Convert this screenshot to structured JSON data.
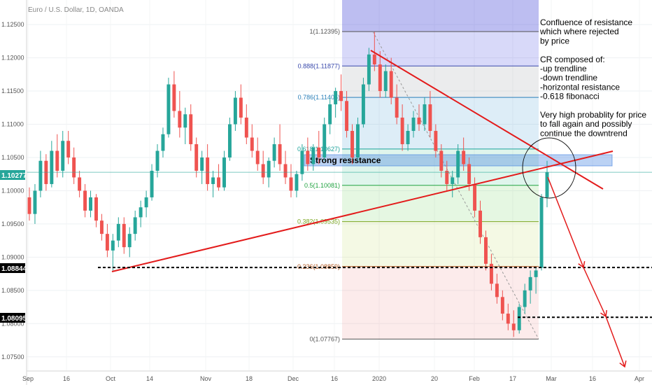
{
  "title": "Euro / U.S. Dollar, 1D, OANDA",
  "colors": {
    "up": "#26a69a",
    "down": "#ef5350",
    "trendline": "#e31b1b",
    "resistance_zone": "#3d7fe0",
    "current_price_bg": "#26a69a",
    "level_bg": "#000000"
  },
  "price_markers": {
    "current": "1.10277",
    "level_high": "1.08844",
    "level_low": "1.08095"
  },
  "zone_label": "Strong resistance",
  "note_lines": [
    "Confluence of resistance",
    "which where rejected",
    "by price",
    "",
    "CR composed of:",
    "-up trendline",
    "-down trendline",
    "-horizontal resistance",
    "-0.618 fibonacci",
    "",
    "Very high probablity for price",
    "to fall again and possibly",
    "continue the downtrend"
  ],
  "fib_labels": [
    {
      "text": "1(1.12395)",
      "price": 1.12395,
      "color": "#555555"
    },
    {
      "text": "0.888(1.11877)",
      "price": 1.11877,
      "color": "#3949ab"
    },
    {
      "text": "0.786(1.11405)",
      "price": 1.11405,
      "color": "#2a7fb8"
    },
    {
      "text": "0.618(1.10627)",
      "price": 1.10627,
      "color": "#1aa39a"
    },
    {
      "text": "0.5(1.10081)",
      "price": 1.10081,
      "color": "#22a341"
    },
    {
      "text": "0.382(1.09535)",
      "price": 1.09535,
      "color": "#7aa51f"
    },
    {
      "text": "0.236(1.08859)",
      "price": 1.08859,
      "color": "#b0561e"
    },
    {
      "text": "0(1.07767)",
      "price": 1.07767,
      "color": "#555555"
    }
  ],
  "chart_data": {
    "type": "candlestick",
    "title": "Euro / U.S. Dollar, 1D, OANDA",
    "x_tick_labels": [
      "Sep",
      "16",
      "Oct",
      "14",
      "Nov",
      "18",
      "Dec",
      "16",
      "2020",
      "20",
      "Feb",
      "17",
      "Mar",
      "16",
      "Apr"
    ],
    "y_tick_labels": [
      "1.12500",
      "1.12000",
      "1.11500",
      "1.11000",
      "1.10500",
      "1.10000",
      "1.09500",
      "1.09000",
      "1.08500",
      "1.08000",
      "1.07500"
    ],
    "y_range": [
      1.0735,
      1.1287
    ],
    "fibonacci": {
      "high": 1.12395,
      "low": 1.07767,
      "levels": [
        1,
        0.888,
        0.786,
        0.618,
        0.5,
        0.382,
        0.236,
        0
      ]
    },
    "resistance_zone": [
      1.1043,
      1.1062
    ],
    "horizontal_levels": [
      1.08844,
      1.08095
    ],
    "current_price": 1.10277,
    "candles_approx": [
      [
        1.099,
        1.1005,
        1.0955,
        1.0965
      ],
      [
        1.0965,
        1.101,
        1.095,
        1.1
      ],
      [
        1.1,
        1.106,
        1.099,
        1.1045
      ],
      [
        1.1045,
        1.1055,
        1.1,
        1.101
      ],
      [
        1.101,
        1.1075,
        1.1005,
        1.106
      ],
      [
        1.106,
        1.1085,
        1.102,
        1.103
      ],
      [
        1.103,
        1.109,
        1.102,
        1.1075
      ],
      [
        1.1075,
        1.109,
        1.104,
        1.105
      ],
      [
        1.105,
        1.1065,
        1.101,
        1.102
      ],
      [
        1.102,
        1.103,
        1.099,
        1.1
      ],
      [
        1.1,
        1.101,
        1.096,
        1.097
      ],
      [
        1.097,
        1.1,
        1.096,
        1.099
      ],
      [
        1.099,
        1.0995,
        1.0945,
        1.0955
      ],
      [
        1.0955,
        1.0965,
        1.0925,
        1.0935
      ],
      [
        1.0935,
        1.095,
        1.09,
        1.091
      ],
      [
        1.091,
        1.0935,
        1.088,
        1.0925
      ],
      [
        1.0925,
        1.096,
        1.0915,
        1.095
      ],
      [
        1.095,
        1.096,
        1.0905,
        1.0915
      ],
      [
        1.0915,
        1.0945,
        1.09,
        1.0935
      ],
      [
        1.0935,
        1.097,
        1.0925,
        1.096
      ],
      [
        1.096,
        1.0985,
        1.0945,
        1.0975
      ],
      [
        1.0975,
        1.1,
        1.096,
        1.099
      ],
      [
        1.099,
        1.104,
        1.0985,
        1.103
      ],
      [
        1.103,
        1.107,
        1.102,
        1.106
      ],
      [
        1.106,
        1.1095,
        1.105,
        1.1085
      ],
      [
        1.1085,
        1.117,
        1.108,
        1.116
      ],
      [
        1.116,
        1.118,
        1.111,
        1.112
      ],
      [
        1.112,
        1.115,
        1.108,
        1.1095
      ],
      [
        1.1095,
        1.1125,
        1.107,
        1.1115
      ],
      [
        1.1115,
        1.113,
        1.106,
        1.107
      ],
      [
        1.107,
        1.108,
        1.102,
        1.103
      ],
      [
        1.103,
        1.106,
        1.101,
        1.105
      ],
      [
        1.105,
        1.107,
        1.1,
        1.101
      ],
      [
        1.101,
        1.103,
        1.099,
        1.102
      ],
      [
        1.102,
        1.104,
        1.1,
        1.1005
      ],
      [
        1.1005,
        1.106,
        1.1,
        1.105
      ],
      [
        1.105,
        1.111,
        1.1045,
        1.11
      ],
      [
        1.11,
        1.115,
        1.109,
        1.114
      ],
      [
        1.114,
        1.116,
        1.11,
        1.111
      ],
      [
        1.111,
        1.113,
        1.107,
        1.108
      ],
      [
        1.108,
        1.11,
        1.105,
        1.106
      ],
      [
        1.106,
        1.108,
        1.103,
        1.104
      ],
      [
        1.104,
        1.106,
        1.101,
        1.102
      ],
      [
        1.102,
        1.105,
        1.1005,
        1.1045
      ],
      [
        1.1045,
        1.108,
        1.1035,
        1.107
      ],
      [
        1.107,
        1.11,
        1.103,
        1.104
      ],
      [
        1.104,
        1.106,
        1.101,
        1.102
      ],
      [
        1.102,
        1.104,
        1.099,
        1.1
      ],
      [
        1.1,
        1.103,
        1.099,
        1.1025
      ],
      [
        1.1025,
        1.107,
        1.1015,
        1.106
      ],
      [
        1.106,
        1.108,
        1.103,
        1.104
      ],
      [
        1.104,
        1.107,
        1.103,
        1.1065
      ],
      [
        1.1065,
        1.109,
        1.104,
        1.105
      ],
      [
        1.105,
        1.111,
        1.1045,
        1.11
      ],
      [
        1.11,
        1.114,
        1.1085,
        1.113
      ],
      [
        1.113,
        1.1155,
        1.111,
        1.115
      ],
      [
        1.115,
        1.1175,
        1.112,
        1.1135
      ],
      [
        1.1135,
        1.115,
        1.108,
        1.109
      ],
      [
        1.109,
        1.11,
        1.104,
        1.105
      ],
      [
        1.105,
        1.111,
        1.1045,
        1.11
      ],
      [
        1.11,
        1.117,
        1.1095,
        1.116
      ],
      [
        1.116,
        1.1215,
        1.115,
        1.1205
      ],
      [
        1.1205,
        1.1239,
        1.118,
        1.119
      ],
      [
        1.119,
        1.121,
        1.114,
        1.115
      ],
      [
        1.115,
        1.119,
        1.114,
        1.118
      ],
      [
        1.118,
        1.12,
        1.113,
        1.114
      ],
      [
        1.114,
        1.116,
        1.11,
        1.111
      ],
      [
        1.111,
        1.113,
        1.106,
        1.107
      ],
      [
        1.107,
        1.11,
        1.106,
        1.109
      ],
      [
        1.109,
        1.112,
        1.108,
        1.111
      ],
      [
        1.111,
        1.113,
        1.109,
        1.11
      ],
      [
        1.11,
        1.114,
        1.109,
        1.113
      ],
      [
        1.113,
        1.115,
        1.108,
        1.109
      ],
      [
        1.109,
        1.11,
        1.105,
        1.106
      ],
      [
        1.106,
        1.107,
        1.102,
        1.103
      ],
      [
        1.103,
        1.1045,
        1.1,
        1.101
      ],
      [
        1.101,
        1.103,
        1.099,
        1.102
      ],
      [
        1.102,
        1.107,
        1.101,
        1.106
      ],
      [
        1.106,
        1.108,
        1.103,
        1.104
      ],
      [
        1.104,
        1.105,
        1.1,
        1.101
      ],
      [
        1.101,
        1.102,
        1.096,
        1.097
      ],
      [
        1.097,
        1.0985,
        1.092,
        1.093
      ],
      [
        1.093,
        1.094,
        1.088,
        1.089
      ],
      [
        1.089,
        1.0905,
        1.085,
        1.086
      ],
      [
        1.086,
        1.0875,
        1.083,
        1.084
      ],
      [
        1.084,
        1.085,
        1.0805,
        1.0815
      ],
      [
        1.0815,
        1.083,
        1.079,
        1.08
      ],
      [
        1.08,
        1.082,
        1.078,
        1.079
      ],
      [
        1.079,
        1.083,
        1.0785,
        1.0825
      ],
      [
        1.0825,
        1.086,
        1.0815,
        1.085
      ],
      [
        1.085,
        1.088,
        1.083,
        1.087
      ],
      [
        1.087,
        1.0885,
        1.0845,
        1.088
      ],
      [
        1.0884,
        1.0995,
        1.088,
        1.099
      ],
      [
        1.099,
        1.1045,
        1.0975,
        1.1028
      ]
    ]
  }
}
